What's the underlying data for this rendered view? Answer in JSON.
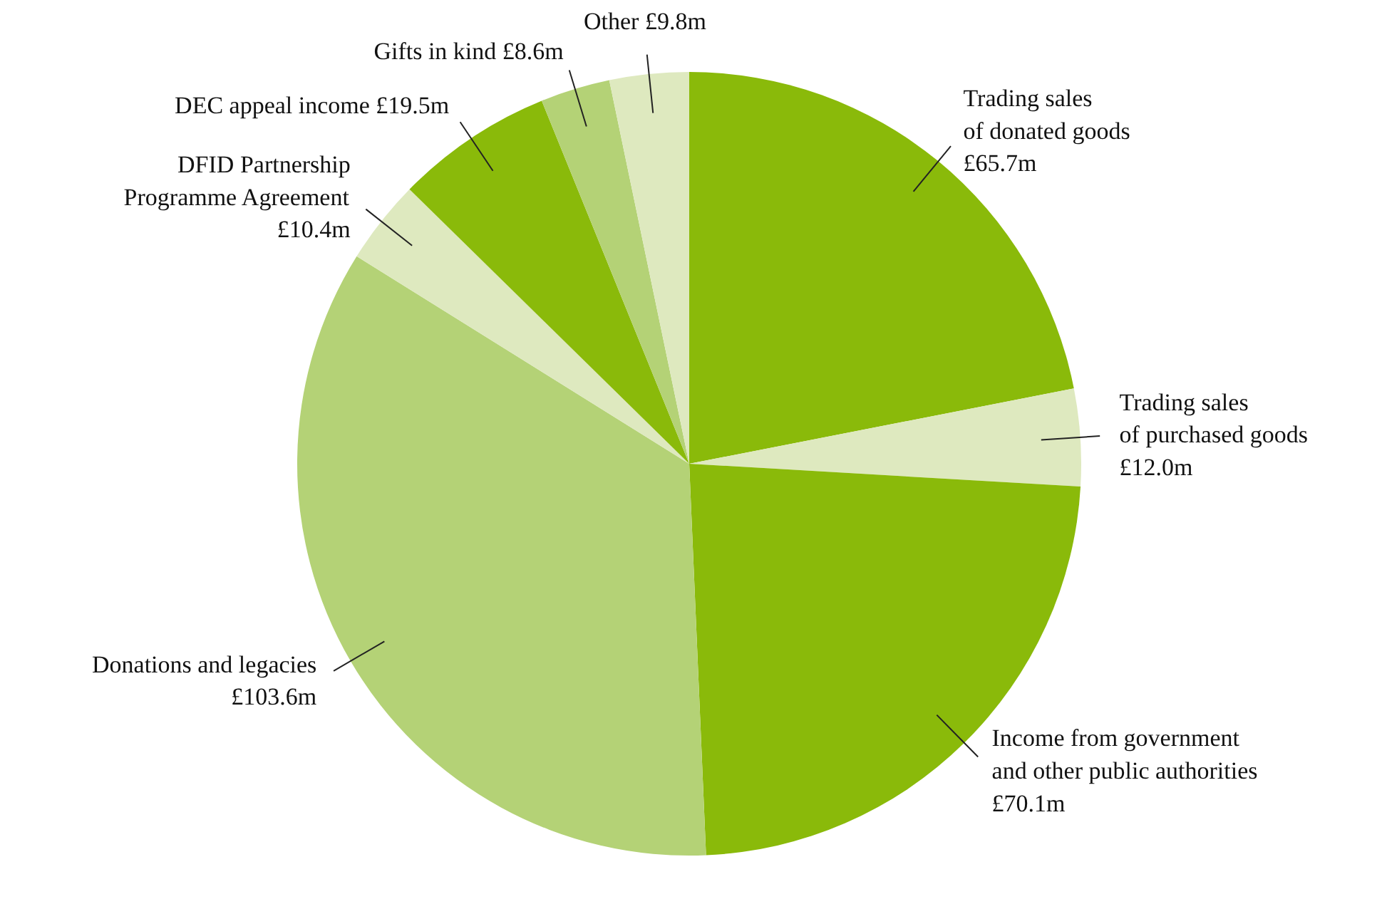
{
  "chart_data": {
    "type": "pie",
    "categories": [
      "Trading sales\nof donated goods",
      "Trading sales\nof purchased goods",
      "Income from government\nand other public authorities",
      "Donations and legacies",
      "DFID Partnership\nProgramme Agreement",
      "DEC appeal income",
      "Gifts in kind",
      "Other"
    ],
    "values": [
      65.7,
      12.0,
      70.1,
      103.6,
      10.4,
      19.5,
      8.6,
      9.8
    ],
    "value_labels": [
      "£65.7m",
      "£12.0m",
      "£70.1m",
      "£103.6m",
      "£10.4m",
      "£19.5m",
      "£8.6m",
      "£9.8m"
    ],
    "colors": [
      "#8aba0a",
      "#dee9bf",
      "#8aba0a",
      "#b4d276",
      "#dee9bf",
      "#8aba0a",
      "#b4d276",
      "#dee9bf"
    ]
  }
}
